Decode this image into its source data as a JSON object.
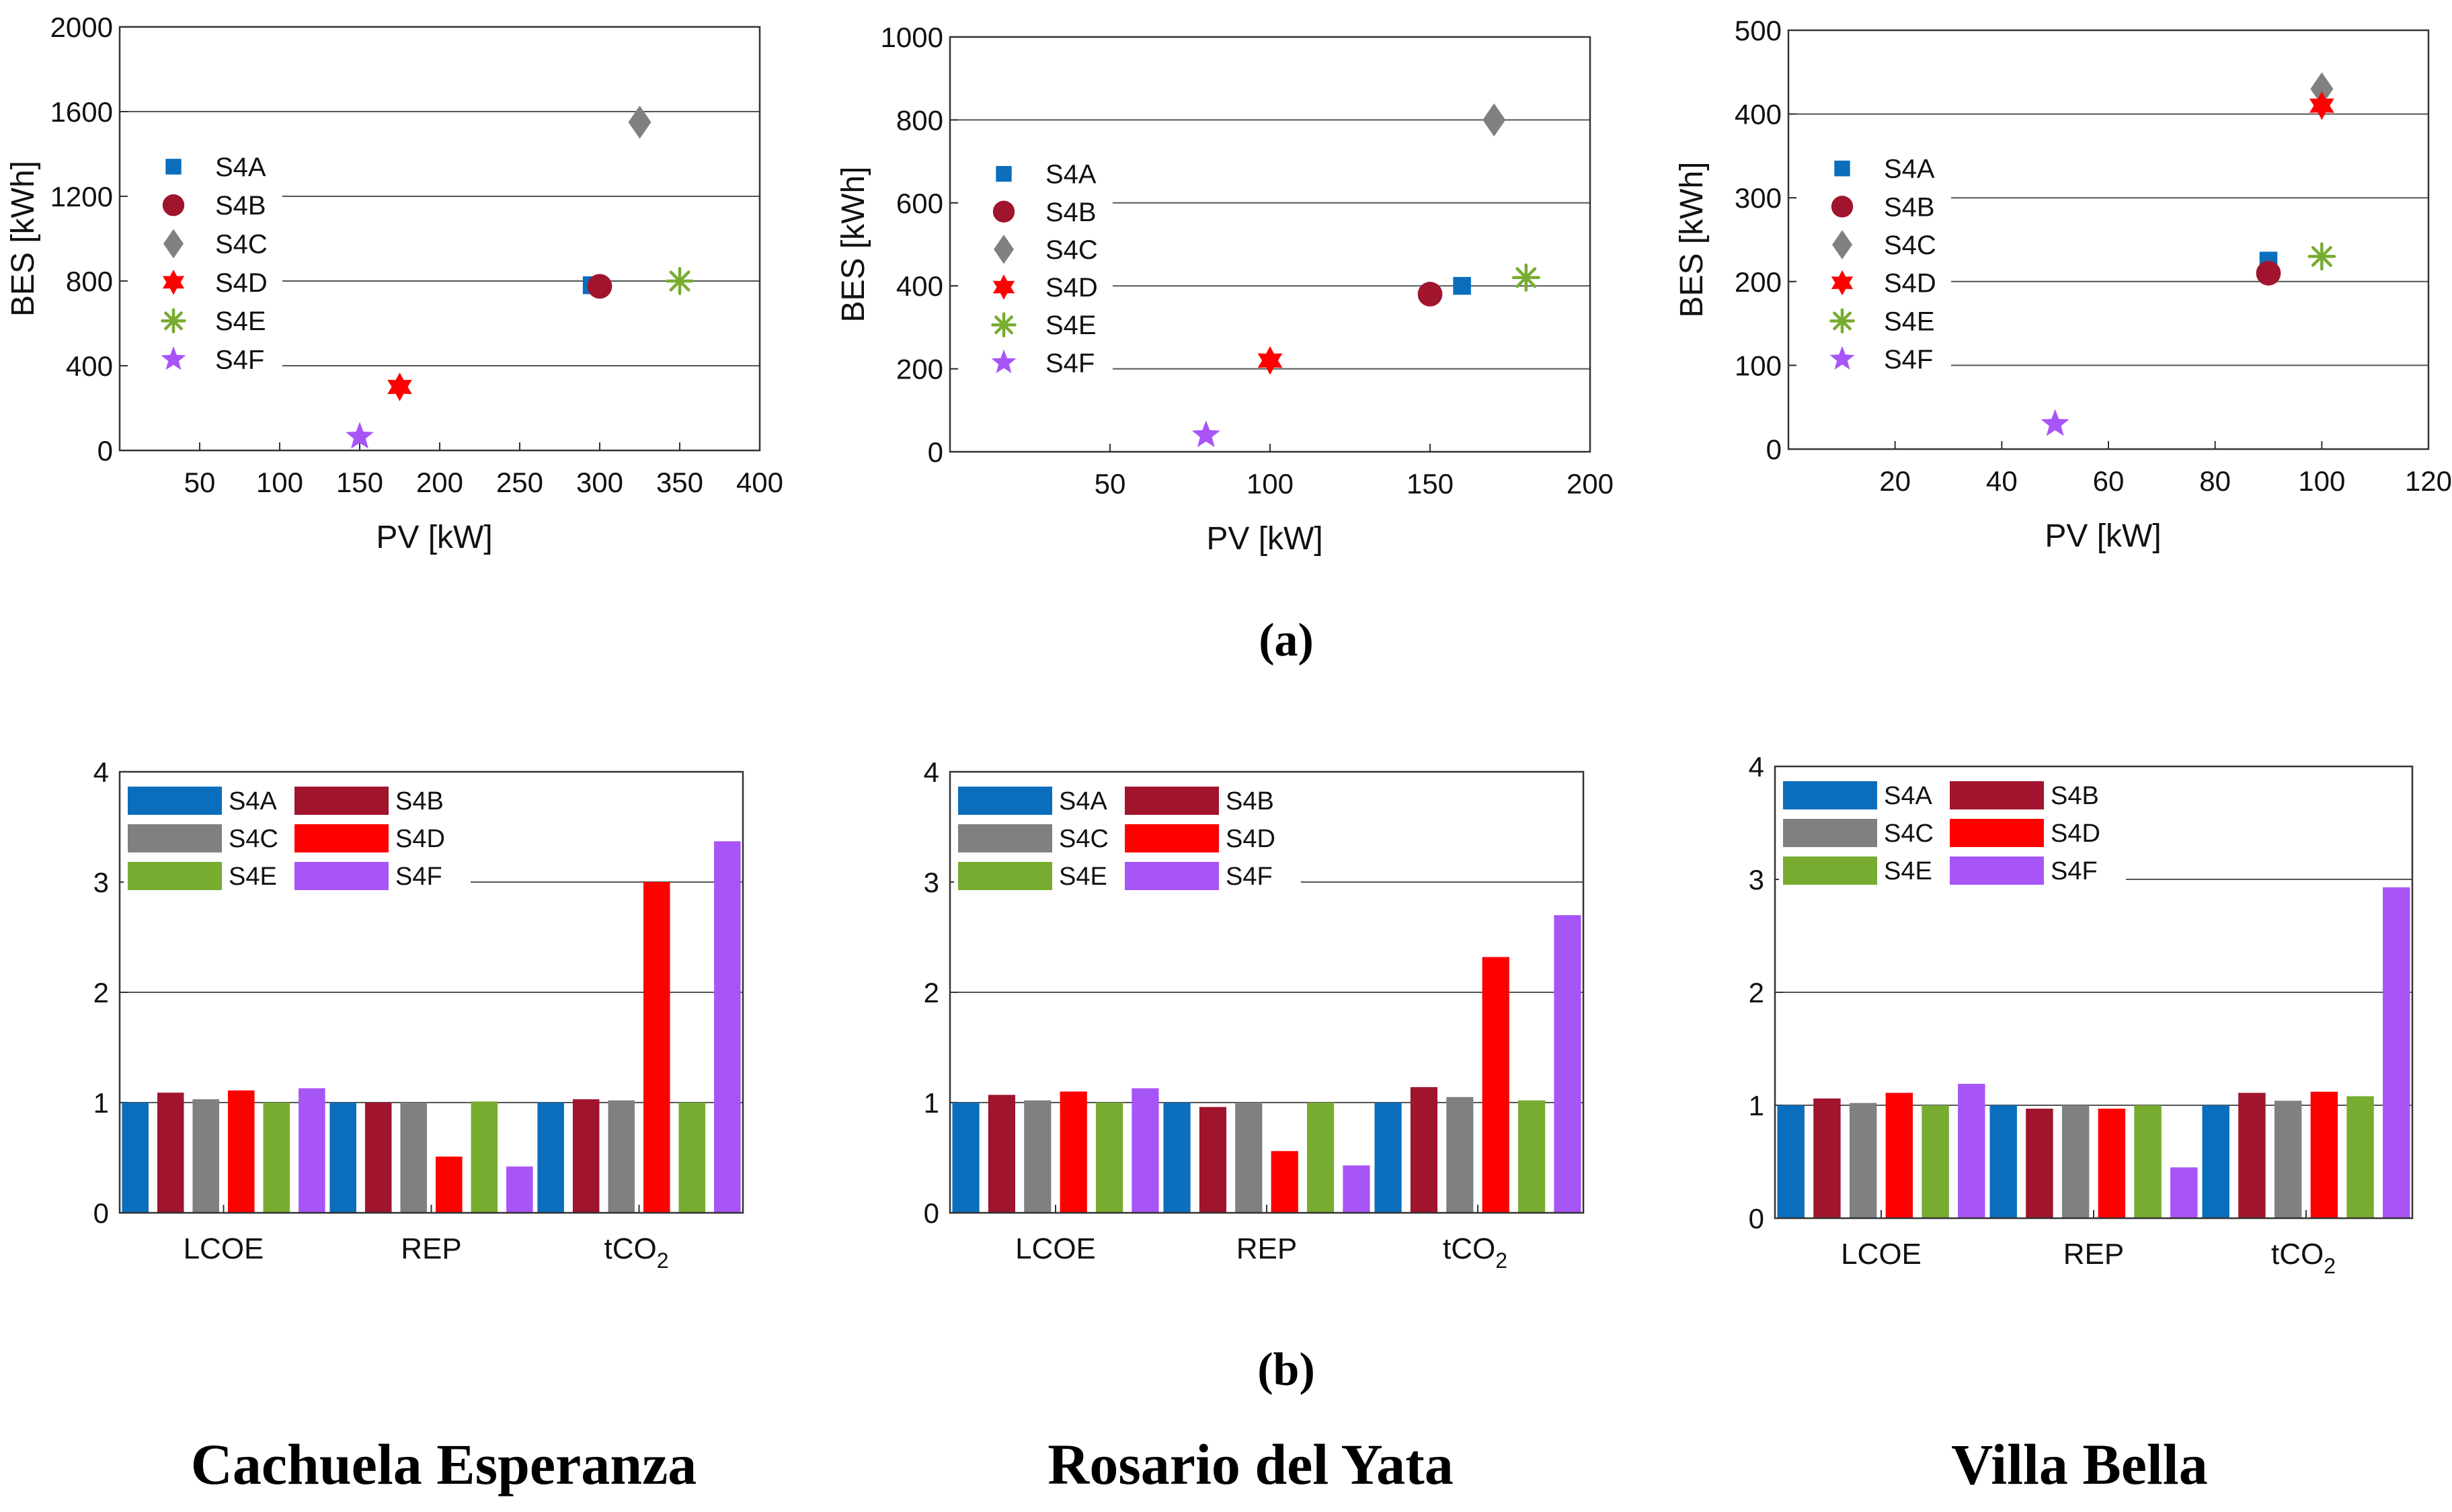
{
  "colors": {
    "S4A": "#0a6ebd",
    "S4B": "#a0142d",
    "S4C": "#808080",
    "S4D": "#ff0000",
    "S4E": "#77ac30",
    "S4F": "#a855f7"
  },
  "panel_labels": {
    "a": "(a)",
    "b": "(b)"
  },
  "locations": [
    "Cachuela Esperanza",
    "Rosario del Yata",
    "Villa Bella"
  ],
  "chart_data": [
    {
      "type": "scatter",
      "location": "Cachuela Esperanza",
      "xlabel": "PV [kW]",
      "ylabel": "BES [kWh]",
      "xlim": [
        0,
        400
      ],
      "ylim": [
        0,
        2000
      ],
      "xticks": [
        50,
        100,
        150,
        200,
        250,
        300,
        350,
        400
      ],
      "yticks": [
        0,
        400,
        800,
        1200,
        1600,
        2000
      ],
      "grid": "horizontal",
      "legend_position": "left",
      "series": [
        {
          "name": "S4A",
          "marker": "square",
          "x": 295,
          "y": 780
        },
        {
          "name": "S4B",
          "marker": "circle",
          "x": 300,
          "y": 775
        },
        {
          "name": "S4C",
          "marker": "diamond",
          "x": 325,
          "y": 1550
        },
        {
          "name": "S4D",
          "marker": "hexagram",
          "x": 175,
          "y": 300
        },
        {
          "name": "S4E",
          "marker": "asterisk",
          "x": 350,
          "y": 800
        },
        {
          "name": "S4F",
          "marker": "star",
          "x": 150,
          "y": 65
        }
      ]
    },
    {
      "type": "scatter",
      "location": "Rosario del Yata",
      "xlabel": "PV [kW]",
      "ylabel": "BES [kWh]",
      "xlim": [
        0,
        200
      ],
      "ylim": [
        0,
        1000
      ],
      "xticks": [
        50,
        100,
        150,
        200
      ],
      "yticks": [
        0,
        200,
        400,
        600,
        800,
        1000
      ],
      "grid": "horizontal",
      "legend_position": "left",
      "series": [
        {
          "name": "S4A",
          "marker": "square",
          "x": 160,
          "y": 400
        },
        {
          "name": "S4B",
          "marker": "circle",
          "x": 150,
          "y": 380
        },
        {
          "name": "S4C",
          "marker": "diamond",
          "x": 170,
          "y": 800
        },
        {
          "name": "S4D",
          "marker": "hexagram",
          "x": 100,
          "y": 220
        },
        {
          "name": "S4E",
          "marker": "asterisk",
          "x": 180,
          "y": 420
        },
        {
          "name": "S4F",
          "marker": "star",
          "x": 80,
          "y": 40
        }
      ]
    },
    {
      "type": "scatter",
      "location": "Villa Bella",
      "xlabel": "PV [kW]",
      "ylabel": "BES [kWh]",
      "xlim": [
        0,
        120
      ],
      "ylim": [
        0,
        500
      ],
      "xticks": [
        20,
        40,
        60,
        80,
        100,
        120
      ],
      "yticks": [
        0,
        100,
        200,
        300,
        400,
        500
      ],
      "grid": "horizontal",
      "legend_position": "left",
      "series": [
        {
          "name": "S4A",
          "marker": "square",
          "x": 90,
          "y": 225
        },
        {
          "name": "S4B",
          "marker": "circle",
          "x": 90,
          "y": 210
        },
        {
          "name": "S4C",
          "marker": "diamond",
          "x": 100,
          "y": 430
        },
        {
          "name": "S4D",
          "marker": "hexagram",
          "x": 100,
          "y": 410
        },
        {
          "name": "S4E",
          "marker": "asterisk",
          "x": 100,
          "y": 230
        },
        {
          "name": "S4F",
          "marker": "star",
          "x": 50,
          "y": 30
        }
      ]
    },
    {
      "type": "bar",
      "location": "Cachuela Esperanza",
      "categories": [
        "LCOE",
        "REP",
        "tCO2"
      ],
      "ylim": [
        0,
        4
      ],
      "yticks": [
        0,
        1,
        2,
        3,
        4
      ],
      "grid": "horizontal",
      "legend_position": "top-left",
      "series": [
        {
          "name": "S4A",
          "values": [
            1.0,
            1.0,
            1.0
          ]
        },
        {
          "name": "S4B",
          "values": [
            1.09,
            1.0,
            1.03
          ]
        },
        {
          "name": "S4C",
          "values": [
            1.03,
            1.0,
            1.02
          ]
        },
        {
          "name": "S4D",
          "values": [
            1.11,
            0.51,
            3.0
          ]
        },
        {
          "name": "S4E",
          "values": [
            1.0,
            1.01,
            1.0
          ]
        },
        {
          "name": "S4F",
          "values": [
            1.13,
            0.42,
            3.37
          ]
        }
      ]
    },
    {
      "type": "bar",
      "location": "Rosario del Yata",
      "categories": [
        "LCOE",
        "REP",
        "tCO2"
      ],
      "ylim": [
        0,
        4
      ],
      "yticks": [
        0,
        1,
        2,
        3,
        4
      ],
      "grid": "horizontal",
      "legend_position": "top-left",
      "series": [
        {
          "name": "S4A",
          "values": [
            1.0,
            1.0,
            1.0
          ]
        },
        {
          "name": "S4B",
          "values": [
            1.07,
            0.96,
            1.14
          ]
        },
        {
          "name": "S4C",
          "values": [
            1.02,
            1.0,
            1.05
          ]
        },
        {
          "name": "S4D",
          "values": [
            1.1,
            0.56,
            2.32
          ]
        },
        {
          "name": "S4E",
          "values": [
            1.0,
            1.0,
            1.02
          ]
        },
        {
          "name": "S4F",
          "values": [
            1.13,
            0.43,
            2.7
          ]
        }
      ]
    },
    {
      "type": "bar",
      "location": "Villa Bella",
      "categories": [
        "LCOE",
        "REP",
        "tCO2"
      ],
      "ylim": [
        0,
        4
      ],
      "yticks": [
        0,
        1,
        2,
        3,
        4
      ],
      "grid": "horizontal",
      "legend_position": "top-left",
      "series": [
        {
          "name": "S4A",
          "values": [
            1.0,
            1.0,
            1.0
          ]
        },
        {
          "name": "S4B",
          "values": [
            1.06,
            0.97,
            1.11
          ]
        },
        {
          "name": "S4C",
          "values": [
            1.02,
            1.0,
            1.04
          ]
        },
        {
          "name": "S4D",
          "values": [
            1.11,
            0.97,
            1.12
          ]
        },
        {
          "name": "S4E",
          "values": [
            1.0,
            1.0,
            1.08
          ]
        },
        {
          "name": "S4F",
          "values": [
            1.19,
            0.45,
            2.93
          ]
        }
      ]
    }
  ]
}
